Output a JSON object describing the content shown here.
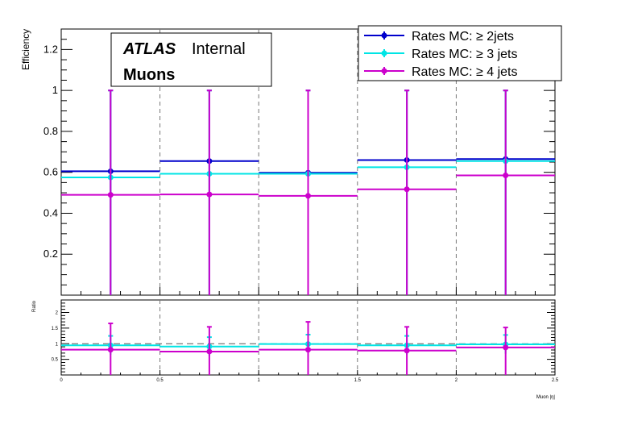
{
  "chart_data": [
    {
      "type": "scatter",
      "panel": "efficiency",
      "ylabel": "Efficiency",
      "xlim": [
        0,
        2.5
      ],
      "ylim": [
        0,
        1.3
      ],
      "yticks": [
        0.2,
        0.4,
        0.6,
        0.8,
        1,
        1.2
      ],
      "ytick_labels": [
        "0.2",
        "0.4",
        "0.6",
        "0.8",
        "1",
        "1.2"
      ],
      "vgrid": [
        0.5,
        1.0,
        1.5,
        2.0
      ],
      "x_bins": [
        [
          0,
          0.5
        ],
        [
          0.5,
          1.0
        ],
        [
          1.0,
          1.5
        ],
        [
          1.5,
          2.0
        ],
        [
          2.0,
          2.5
        ]
      ],
      "annotation": {
        "experiment": "ATLAS",
        "status": "Internal",
        "channel": "Muons"
      },
      "legend_position": "top-right",
      "series": [
        {
          "name": "Rates MC: ≥ 2jets",
          "color": "#0000cc",
          "values": [
            0.605,
            0.655,
            0.598,
            0.66,
            0.665
          ],
          "err_low": [
            0.605,
            0.655,
            0.598,
            0.66,
            0.665
          ],
          "err_high": [
            0.395,
            0.345,
            0.402,
            0.34,
            0.335
          ]
        },
        {
          "name": "Rates MC: ≥ 3 jets",
          "color": "#00e5e5",
          "values": [
            0.575,
            0.593,
            0.593,
            0.625,
            0.655
          ],
          "err_low": [
            0.575,
            0.593,
            0.593,
            0.625,
            0.655
          ],
          "err_high": [
            0.425,
            0.407,
            0.407,
            0.375,
            0.345
          ]
        },
        {
          "name": "Rates MC: ≥ 4 jets",
          "color": "#cc00cc",
          "values": [
            0.49,
            0.492,
            0.485,
            0.517,
            0.585
          ],
          "err_low": [
            0.49,
            0.492,
            0.485,
            0.517,
            0.585
          ],
          "err_high": [
            0.51,
            0.508,
            0.515,
            0.483,
            0.415
          ]
        }
      ]
    },
    {
      "type": "scatter",
      "panel": "ratio",
      "ylabel": "Ratio",
      "xlabel": "Muon |η|",
      "xlim": [
        0,
        2.5
      ],
      "ylim": [
        0,
        2.4
      ],
      "yticks": [
        0.5,
        1,
        1.5,
        2
      ],
      "ytick_labels": [
        "0.5",
        "1",
        "1.5",
        "2"
      ],
      "xticks": [
        0,
        0.5,
        1,
        1.5,
        2,
        2.5
      ],
      "xtick_labels": [
        "0",
        "0.5",
        "1",
        "1.5",
        "2",
        "2.5"
      ],
      "reference_line": 1,
      "series": [
        {
          "name": "",
          "color": "#00e5e5",
          "values": [
            0.95,
            0.91,
            0.99,
            0.95,
            0.98
          ],
          "err_low": [
            0.3,
            0.3,
            0.3,
            0.3,
            0.3
          ],
          "err_high": [
            0.3,
            0.3,
            0.3,
            0.3,
            0.3
          ]
        },
        {
          "name": "",
          "color": "#cc00cc",
          "values": [
            0.81,
            0.75,
            0.81,
            0.78,
            0.88
          ],
          "err_low": [
            0.81,
            0.75,
            0.81,
            0.78,
            0.88
          ],
          "err_high": [
            0.84,
            0.79,
            0.89,
            0.76,
            0.64
          ]
        }
      ]
    }
  ]
}
